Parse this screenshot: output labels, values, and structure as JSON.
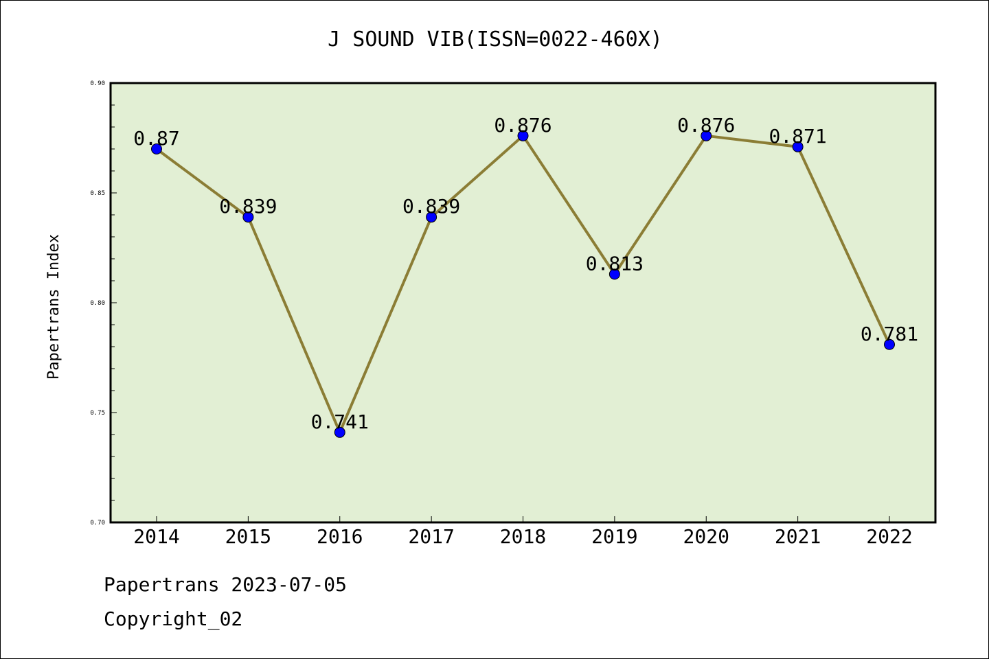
{
  "chart_data": {
    "type": "line",
    "title": "J SOUND VIB(ISSN=0022-460X)",
    "xlabel": "",
    "ylabel": "Papertrans Index",
    "categories": [
      "2014",
      "2015",
      "2016",
      "2017",
      "2018",
      "2019",
      "2020",
      "2021",
      "2022"
    ],
    "series": [
      {
        "values": [
          0.87,
          0.839,
          0.741,
          0.839,
          0.876,
          0.813,
          0.876,
          0.871,
          0.781
        ],
        "labels": [
          "0.87",
          "0.839",
          "0.741",
          "0.839",
          "0.876",
          "0.813",
          "0.876",
          "0.871",
          "0.781"
        ]
      }
    ],
    "ylim": [
      0.7,
      0.9
    ],
    "yticks": [
      "0.70",
      "0.75",
      "0.80",
      "0.85",
      "0.90"
    ],
    "grid": false,
    "colors": {
      "plot_background": "#e2efd4",
      "line": "#8b7d35",
      "marker": "#0000ff"
    }
  },
  "footer": {
    "date_line": "Papertrans 2023-07-05",
    "copyright": "Copyright_02"
  }
}
